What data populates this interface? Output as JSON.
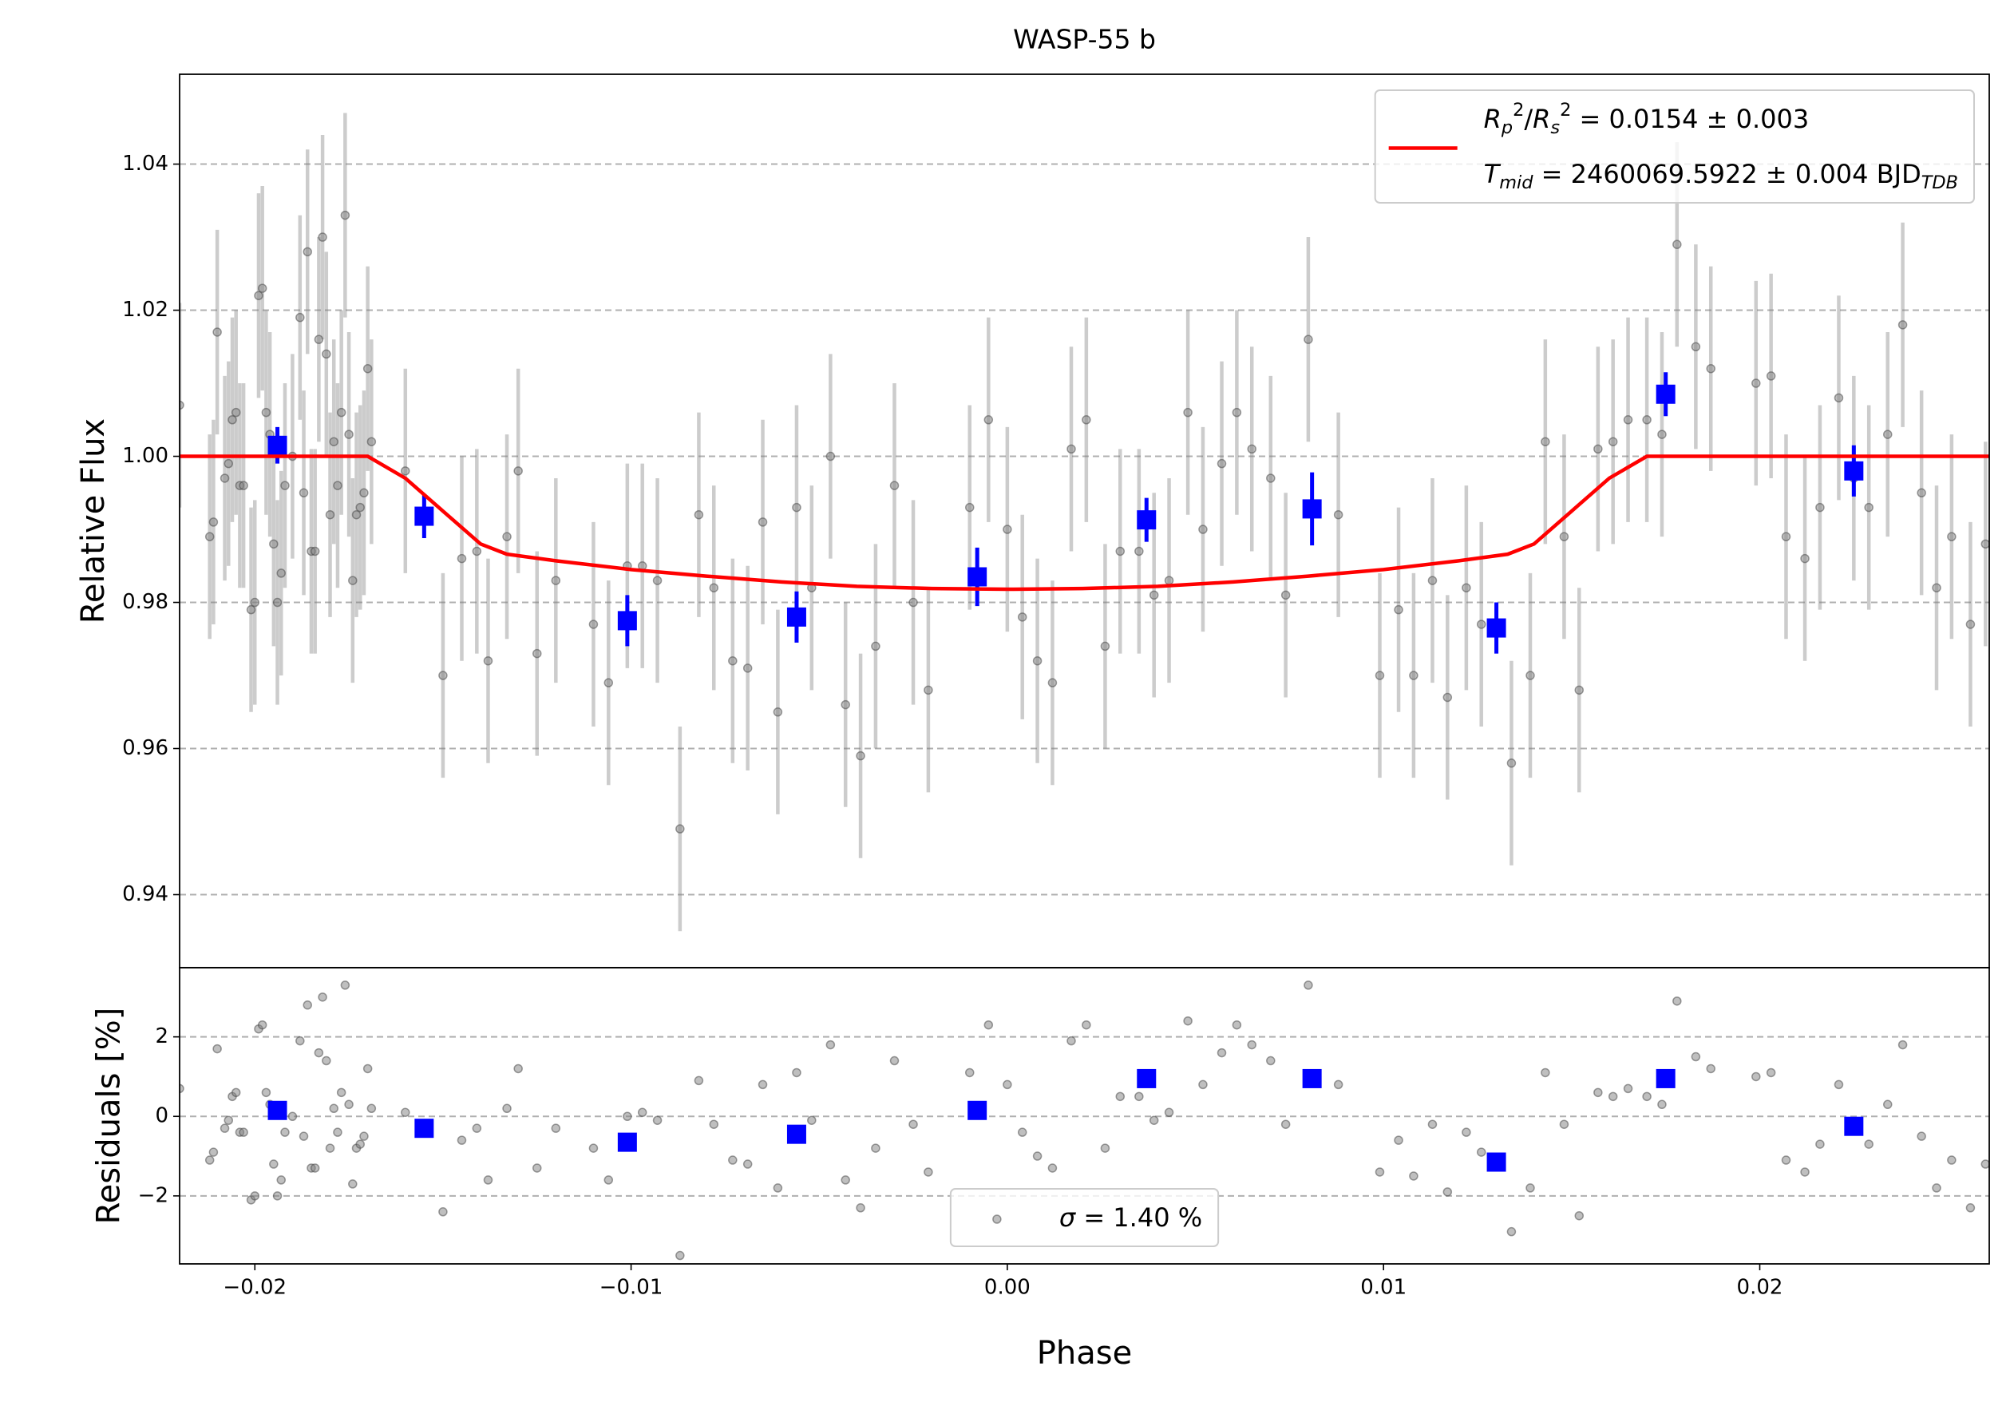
{
  "chart_data": [
    {
      "type": "errorbar",
      "title": "WASP-55 b",
      "ylabel": "Relative Flux",
      "xlim": [
        -0.022,
        0.0261
      ],
      "ylim": [
        0.93,
        1.0523
      ],
      "yticks": [
        0.94,
        0.96,
        0.98,
        {
          "value": 1.0,
          "label": "1.00"
        },
        1.02,
        1.04
      ],
      "grid": true,
      "legend": "upper right",
      "series": [
        {
          "kind": "points",
          "color": "#808080",
          "error": 0.014,
          "x": [
            -0.022,
            -0.0212,
            -0.0211,
            -0.021,
            -0.0208,
            -0.0207,
            -0.0206,
            -0.0205,
            -0.0204,
            -0.0203,
            -0.0201,
            -0.02,
            -0.0199,
            -0.0198,
            -0.0197,
            -0.0196,
            -0.0195,
            -0.0194,
            -0.0193,
            -0.0192,
            -0.019,
            -0.0188,
            -0.0187,
            -0.0186,
            -0.0185,
            -0.0184,
            -0.0183,
            -0.0182,
            -0.0181,
            -0.018,
            -0.0179,
            -0.0178,
            -0.0177,
            -0.0176,
            -0.0175,
            -0.0174,
            -0.0173,
            -0.0172,
            -0.0171,
            -0.017,
            -0.0169,
            -0.016,
            -0.015,
            -0.0145,
            -0.0141,
            -0.0138,
            -0.0133,
            -0.013,
            -0.0125,
            -0.012,
            -0.011,
            -0.0106,
            -0.0101,
            -0.0097,
            -0.0093,
            -0.0087,
            -0.0082,
            -0.0078,
            -0.0073,
            -0.0069,
            -0.0065,
            -0.0061,
            -0.0056,
            -0.0052,
            -0.0047,
            -0.0043,
            -0.0039,
            -0.0035,
            -0.003,
            -0.0025,
            -0.0021,
            -0.001,
            -0.0005,
            0.0,
            0.0004,
            0.0008,
            0.0012,
            0.0017,
            0.0021,
            0.0026,
            0.003,
            0.0035,
            0.0039,
            0.0043,
            0.0048,
            0.0052,
            0.0057,
            0.0061,
            0.0065,
            0.007,
            0.0074,
            0.008,
            0.0088,
            0.0099,
            0.0104,
            0.0108,
            0.0113,
            0.0117,
            0.0122,
            0.0126,
            0.0134,
            0.0139,
            0.0143,
            0.0148,
            0.0152,
            0.0157,
            0.0161,
            0.0165,
            0.017,
            0.0174,
            0.0178,
            0.0183,
            0.0187,
            0.0199,
            0.0203,
            0.0207,
            0.0212,
            0.0216,
            0.0221,
            0.0225,
            0.0229,
            0.0234,
            0.0238,
            0.0243,
            0.0247,
            0.0251,
            0.0256,
            0.026
          ],
          "values": [
            1.007,
            0.989,
            0.991,
            1.017,
            0.997,
            0.999,
            1.005,
            1.006,
            0.996,
            0.996,
            0.979,
            0.98,
            1.022,
            1.023,
            1.006,
            1.003,
            0.988,
            0.98,
            0.984,
            0.996,
            1.0,
            1.019,
            0.995,
            1.028,
            0.987,
            0.987,
            1.016,
            1.03,
            1.014,
            0.992,
            1.002,
            0.996,
            1.006,
            1.033,
            1.003,
            0.983,
            0.992,
            0.993,
            0.995,
            1.012,
            1.002,
            0.998,
            0.97,
            0.986,
            0.987,
            0.972,
            0.989,
            0.998,
            0.973,
            0.983,
            0.977,
            0.969,
            0.985,
            0.985,
            0.983,
            0.949,
            0.992,
            0.982,
            0.972,
            0.971,
            0.991,
            0.965,
            0.993,
            0.982,
            1.0,
            0.966,
            0.959,
            0.974,
            0.996,
            0.98,
            0.968,
            0.993,
            1.005,
            0.99,
            0.978,
            0.972,
            0.969,
            1.001,
            1.005,
            0.974,
            0.987,
            0.987,
            0.981,
            0.983,
            1.006,
            0.99,
            0.999,
            1.006,
            1.001,
            0.997,
            0.981,
            1.016,
            0.992,
            0.97,
            0.979,
            0.97,
            0.983,
            0.967,
            0.982,
            0.977,
            0.958,
            0.97,
            1.002,
            0.989,
            0.968,
            1.001,
            1.002,
            1.005,
            1.005,
            1.003,
            1.029,
            1.015,
            1.012,
            1.01,
            1.011,
            0.989,
            0.986,
            0.993,
            1.008,
            0.997,
            0.993,
            1.003,
            1.018,
            0.995,
            0.982,
            0.989,
            0.977,
            0.988
          ]
        },
        {
          "kind": "binned",
          "color": "#0000ff",
          "x": [
            -0.0194,
            -0.0155,
            -0.0101,
            -0.0056,
            -0.0008,
            0.0037,
            0.0081,
            0.013,
            0.0175,
            0.0225
          ],
          "values": [
            1.0015,
            0.9918,
            0.9775,
            0.978,
            0.9835,
            0.9913,
            0.9928,
            0.9765,
            1.0085,
            0.998
          ],
          "errors": [
            0.0025,
            0.003,
            0.0035,
            0.0035,
            0.004,
            0.003,
            0.005,
            0.0035,
            0.003,
            0.0035
          ]
        },
        {
          "kind": "line",
          "color": "#ff0000",
          "name": [
            [
              {
                "text": "R",
                "style": "italic"
              },
              {
                "text": "p",
                "style": "sub italic"
              },
              {
                "text": "2",
                "style": "sup"
              },
              {
                "text": "/"
              },
              {
                "text": "R",
                "style": "italic"
              },
              {
                "text": "s",
                "style": "sub italic"
              },
              {
                "text": "2",
                "style": "sup"
              },
              {
                "text": " = 0.0154 ± 0.003"
              }
            ],
            [
              {
                "text": "T",
                "style": "italic"
              },
              {
                "text": "mid",
                "style": "sub italic"
              },
              {
                "text": " = 2460069.5922 ± 0.004 BJD"
              },
              {
                "text": "TDB",
                "style": "sub italic"
              }
            ]
          ],
          "x": [
            -0.022,
            -0.017,
            -0.016,
            -0.015,
            -0.014,
            -0.0133,
            -0.012,
            -0.01,
            -0.008,
            -0.006,
            -0.004,
            -0.002,
            0.0,
            0.002,
            0.004,
            0.006,
            0.008,
            0.01,
            0.012,
            0.0133,
            0.014,
            0.015,
            0.016,
            0.017,
            0.0261
          ],
          "values": [
            1.0,
            1.0,
            0.997,
            0.9925,
            0.988,
            0.9866,
            0.9857,
            0.9845,
            0.9836,
            0.9828,
            0.9822,
            0.9819,
            0.9818,
            0.9819,
            0.9822,
            0.9828,
            0.9836,
            0.9845,
            0.9857,
            0.9866,
            0.988,
            0.9925,
            0.997,
            1.0,
            1.0
          ]
        }
      ]
    },
    {
      "type": "scatter",
      "ylabel": "Residuals [%]",
      "xlabel": "Phase",
      "xlim": [
        -0.022,
        0.0261
      ],
      "xticks": [
        {
          "value": -0.02,
          "label": "−0.02"
        },
        {
          "value": -0.01,
          "label": "−0.01"
        },
        {
          "value": 0.0,
          "label": "0.00"
        },
        0.01,
        0.02
      ],
      "ylim": [
        -3.71,
        3.74
      ],
      "yticks": [
        {
          "value": -2,
          "label": "−2"
        },
        0,
        2
      ],
      "grid": true,
      "legend": "lower center",
      "series": [
        {
          "kind": "points",
          "color": "#808080",
          "name": [
            [
              {
                "text": "σ",
                "style": "italic"
              },
              {
                "text": " = 1.40 %"
              }
            ]
          ],
          "x": [
            -0.022,
            -0.0212,
            -0.0211,
            -0.021,
            -0.0208,
            -0.0207,
            -0.0206,
            -0.0205,
            -0.0204,
            -0.0203,
            -0.0201,
            -0.02,
            -0.0199,
            -0.0198,
            -0.0197,
            -0.0196,
            -0.0195,
            -0.0194,
            -0.0193,
            -0.0192,
            -0.019,
            -0.0188,
            -0.0187,
            -0.0186,
            -0.0185,
            -0.0184,
            -0.0183,
            -0.0182,
            -0.0181,
            -0.018,
            -0.0179,
            -0.0178,
            -0.0177,
            -0.0176,
            -0.0175,
            -0.0174,
            -0.0173,
            -0.0172,
            -0.0171,
            -0.017,
            -0.0169,
            -0.016,
            -0.015,
            -0.0145,
            -0.0141,
            -0.0138,
            -0.0133,
            -0.013,
            -0.0125,
            -0.012,
            -0.011,
            -0.0106,
            -0.0101,
            -0.0097,
            -0.0093,
            -0.0087,
            -0.0082,
            -0.0078,
            -0.0073,
            -0.0069,
            -0.0065,
            -0.0061,
            -0.0056,
            -0.0052,
            -0.0047,
            -0.0043,
            -0.0039,
            -0.0035,
            -0.003,
            -0.0025,
            -0.0021,
            -0.001,
            -0.0005,
            0.0,
            0.0004,
            0.0008,
            0.0012,
            0.0017,
            0.0021,
            0.0026,
            0.003,
            0.0035,
            0.0039,
            0.0043,
            0.0048,
            0.0052,
            0.0057,
            0.0061,
            0.0065,
            0.007,
            0.0074,
            0.008,
            0.0088,
            0.0099,
            0.0104,
            0.0108,
            0.0113,
            0.0117,
            0.0122,
            0.0126,
            0.0134,
            0.0139,
            0.0143,
            0.0148,
            0.0152,
            0.0157,
            0.0161,
            0.0165,
            0.017,
            0.0174,
            0.0178,
            0.0183,
            0.0187,
            0.0199,
            0.0203,
            0.0207,
            0.0212,
            0.0216,
            0.0221,
            0.0225,
            0.0229,
            0.0234,
            0.0238,
            0.0243,
            0.0247,
            0.0251,
            0.0256,
            0.026
          ],
          "values": [
            0.7,
            -1.1,
            -0.9,
            1.7,
            -0.3,
            -0.1,
            0.5,
            0.6,
            -0.4,
            -0.4,
            -2.1,
            -2.0,
            2.2,
            2.3,
            0.6,
            0.3,
            -1.2,
            -2.0,
            -1.6,
            -0.4,
            0.0,
            1.9,
            -0.5,
            2.8,
            -1.3,
            -1.3,
            1.6,
            3.0,
            1.4,
            -0.8,
            0.2,
            -0.4,
            0.6,
            3.3,
            0.3,
            -1.7,
            -0.8,
            -0.7,
            -0.5,
            1.2,
            0.2,
            0.1,
            -2.4,
            -0.6,
            -0.3,
            -1.6,
            0.2,
            1.2,
            -1.3,
            -0.3,
            -0.8,
            -1.6,
            0.0,
            0.1,
            -0.1,
            -3.5,
            0.9,
            -0.2,
            -1.1,
            -1.2,
            0.8,
            -1.8,
            1.1,
            -0.1,
            1.8,
            -1.6,
            -2.3,
            -0.8,
            1.4,
            -0.2,
            -1.4,
            1.1,
            2.3,
            0.8,
            -0.4,
            -1.0,
            -1.3,
            1.9,
            2.3,
            -0.8,
            0.5,
            0.5,
            -0.1,
            0.1,
            2.4,
            0.8,
            1.6,
            2.3,
            1.8,
            1.4,
            -0.2,
            3.3,
            0.8,
            -1.4,
            -0.6,
            -1.5,
            -0.2,
            -1.9,
            -0.4,
            -0.9,
            -2.9,
            -1.8,
            1.1,
            -0.2,
            -2.5,
            0.6,
            0.5,
            0.7,
            0.5,
            0.3,
            2.9,
            1.5,
            1.2,
            1.0,
            1.1,
            -1.1,
            -1.4,
            -0.7,
            0.8,
            -0.3,
            -0.7,
            0.3,
            1.8,
            -0.5,
            -1.8,
            -1.1,
            -2.3,
            -1.2
          ]
        },
        {
          "kind": "binned",
          "color": "#0000ff",
          "x": [
            -0.0194,
            -0.0155,
            -0.0101,
            -0.0056,
            -0.0008,
            0.0037,
            0.0081,
            0.013,
            0.0175,
            0.0225
          ],
          "values": [
            0.15,
            -0.3,
            -0.65,
            -0.45,
            0.15,
            0.95,
            0.95,
            -1.15,
            0.95,
            -0.25
          ]
        }
      ]
    }
  ]
}
